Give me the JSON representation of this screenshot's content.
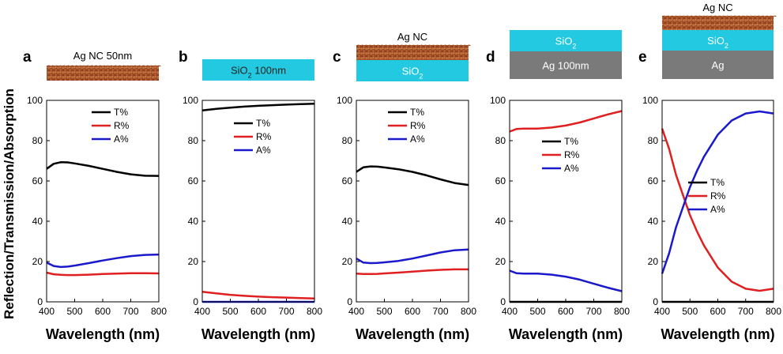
{
  "figure": {
    "ylabel": "Reflection/Transmission/Absorption",
    "xlabel": "Wavelength (nm)"
  },
  "colors": {
    "T": "#000000",
    "R": "#e02020",
    "A": "#1a1acc",
    "sio2": "#22c9e0",
    "ag_film": "#7a7a7a",
    "nanocrystal": "#a8552a"
  },
  "panels": [
    {
      "letter": "a",
      "layers": [
        {
          "type": "nc",
          "text": "Ag NC 50nm",
          "text_position": "above"
        }
      ]
    },
    {
      "letter": "b",
      "layers": [
        {
          "type": "sio2",
          "text": "SiO",
          "sub": "2",
          "tail": " 100nm"
        }
      ]
    },
    {
      "letter": "c",
      "top_label": "Ag NC",
      "layers": [
        {
          "type": "nc"
        },
        {
          "type": "sio2",
          "text": "SiO",
          "sub": "2",
          "tail": ""
        }
      ]
    },
    {
      "letter": "d",
      "layers": [
        {
          "type": "sio2",
          "text": "SiO",
          "sub": "2",
          "tail": ""
        },
        {
          "type": "ag",
          "text": "Ag 100nm"
        }
      ]
    },
    {
      "letter": "e",
      "top_label": "Ag NC",
      "layers": [
        {
          "type": "nc"
        },
        {
          "type": "sio2",
          "text": "SiO",
          "sub": "2",
          "tail": ""
        },
        {
          "type": "ag",
          "text": "Ag"
        }
      ]
    }
  ],
  "chart_data": [
    {
      "type": "line",
      "panel": "a",
      "xlim": [
        400,
        800
      ],
      "ylim": [
        0,
        100
      ],
      "xticks": [
        400,
        500,
        600,
        700,
        800
      ],
      "yticks": [
        0,
        20,
        40,
        60,
        80,
        100
      ],
      "legend": [
        "T%",
        "R%",
        "A%"
      ],
      "legend_placement": "top-right",
      "x": [
        400,
        425,
        450,
        475,
        500,
        550,
        600,
        650,
        700,
        750,
        800
      ],
      "series": [
        {
          "name": "T%",
          "values": [
            66,
            68.5,
            69.3,
            69.2,
            68.7,
            67.5,
            66,
            64.5,
            63.3,
            62.6,
            62.5
          ]
        },
        {
          "name": "R%",
          "values": [
            14.5,
            13.7,
            13.4,
            13.3,
            13.3,
            13.5,
            13.8,
            14,
            14.2,
            14.2,
            14.1
          ]
        },
        {
          "name": "A%",
          "values": [
            19.5,
            17.8,
            17.3,
            17.5,
            18,
            19.2,
            20.5,
            21.7,
            22.7,
            23.3,
            23.5
          ]
        }
      ]
    },
    {
      "type": "line",
      "panel": "b",
      "xlim": [
        400,
        800
      ],
      "ylim": [
        0,
        100
      ],
      "xticks": [
        400,
        500,
        600,
        700,
        800
      ],
      "yticks": [
        0,
        20,
        40,
        60,
        80,
        100
      ],
      "legend": [
        "T%",
        "R%",
        "A%"
      ],
      "legend_placement": "upper-right",
      "x": [
        400,
        450,
        500,
        550,
        600,
        650,
        700,
        750,
        800
      ],
      "series": [
        {
          "name": "T%",
          "values": [
            95,
            95.8,
            96.4,
            96.9,
            97.3,
            97.6,
            97.9,
            98.1,
            98.3
          ]
        },
        {
          "name": "R%",
          "values": [
            5,
            4.2,
            3.5,
            3,
            2.6,
            2.3,
            2.1,
            1.9,
            1.7
          ]
        },
        {
          "name": "A%",
          "values": [
            0,
            0,
            0,
            0,
            0,
            0,
            0,
            0,
            0
          ]
        }
      ]
    },
    {
      "type": "line",
      "panel": "c",
      "xlim": [
        400,
        800
      ],
      "ylim": [
        0,
        100
      ],
      "xticks": [
        400,
        500,
        600,
        700,
        800
      ],
      "yticks": [
        0,
        20,
        40,
        60,
        80,
        100
      ],
      "legend": [
        "T%",
        "R%",
        "A%"
      ],
      "legend_placement": "top-right",
      "x": [
        400,
        425,
        450,
        475,
        500,
        550,
        600,
        650,
        700,
        750,
        800
      ],
      "series": [
        {
          "name": "T%",
          "values": [
            64.5,
            66.8,
            67.2,
            67.1,
            66.7,
            65.8,
            64.5,
            62.8,
            60.8,
            59,
            58
          ]
        },
        {
          "name": "R%",
          "values": [
            14,
            13.8,
            13.8,
            13.9,
            14.1,
            14.5,
            15,
            15.5,
            15.9,
            16.1,
            16.1
          ]
        },
        {
          "name": "A%",
          "values": [
            21.5,
            19.5,
            19.2,
            19.3,
            19.6,
            20.3,
            21.5,
            23,
            24.5,
            25.6,
            26
          ]
        }
      ]
    },
    {
      "type": "line",
      "panel": "d",
      "xlim": [
        400,
        800
      ],
      "ylim": [
        0,
        100
      ],
      "xticks": [
        400,
        500,
        600,
        700,
        800
      ],
      "yticks": [
        0,
        20,
        40,
        60,
        80,
        100
      ],
      "legend": [
        "T%",
        "R%",
        "A%"
      ],
      "legend_placement": "right",
      "x": [
        400,
        425,
        450,
        500,
        550,
        600,
        650,
        700,
        750,
        800
      ],
      "series": [
        {
          "name": "T%",
          "values": [
            0,
            0,
            0,
            0,
            0,
            0,
            0,
            0,
            0,
            0
          ]
        },
        {
          "name": "R%",
          "values": [
            84.5,
            85.8,
            86,
            86,
            86.5,
            87.5,
            89,
            91,
            93,
            94.7
          ]
        },
        {
          "name": "A%",
          "values": [
            15.5,
            14.2,
            14,
            14,
            13.5,
            12.5,
            11,
            9,
            7,
            5.3
          ]
        }
      ]
    },
    {
      "type": "line",
      "panel": "e",
      "xlim": [
        400,
        800
      ],
      "ylim": [
        0,
        100
      ],
      "xticks": [
        400,
        500,
        600,
        700,
        800
      ],
      "yticks": [
        0,
        20,
        40,
        60,
        80,
        100
      ],
      "legend": [
        "T%",
        "R%",
        "A%"
      ],
      "legend_placement": "right",
      "x": [
        400,
        425,
        450,
        475,
        500,
        525,
        550,
        600,
        650,
        700,
        750,
        800
      ],
      "series": [
        {
          "name": "T%",
          "values": [
            0,
            0,
            0,
            0,
            0,
            0,
            0,
            0,
            0,
            0,
            0,
            0
          ]
        },
        {
          "name": "R%",
          "values": [
            86,
            76,
            63,
            53,
            43,
            35,
            28,
            17,
            10,
            6.5,
            5.5,
            6.5
          ]
        },
        {
          "name": "A%",
          "values": [
            14,
            24,
            37,
            47,
            57,
            65,
            72,
            83,
            90,
            93.5,
            94.5,
            93.5
          ]
        }
      ]
    }
  ]
}
